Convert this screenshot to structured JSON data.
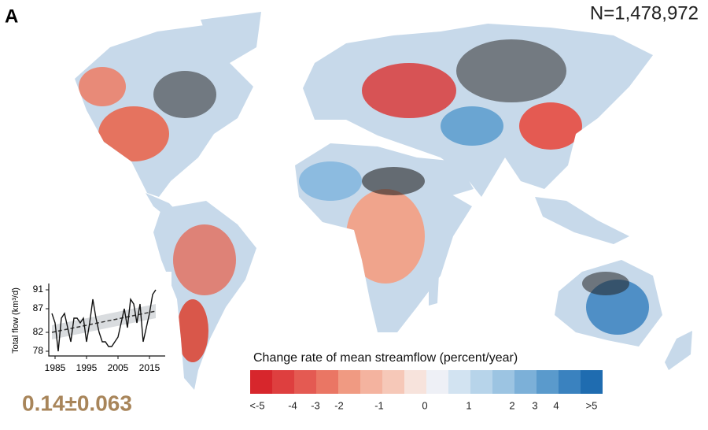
{
  "panel_label": "A",
  "sample_count": "N=1,478,972",
  "inset_chart": {
    "type": "line",
    "y_label": "Total flow (km³/d)",
    "x": [
      1984,
      1985,
      1986,
      1987,
      1988,
      1989,
      1990,
      1991,
      1992,
      1993,
      1994,
      1995,
      1996,
      1997,
      1998,
      1999,
      2000,
      2001,
      2002,
      2003,
      2004,
      2005,
      2006,
      2007,
      2008,
      2009,
      2010,
      2011,
      2012,
      2013,
      2014,
      2015,
      2016,
      2017
    ],
    "values": [
      86,
      84,
      78,
      85,
      86,
      83,
      80,
      85,
      85,
      84,
      85,
      80,
      84,
      89,
      85,
      82,
      80,
      80,
      79,
      79,
      80,
      81,
      84,
      87,
      83,
      89,
      88,
      84,
      88,
      80,
      83,
      86,
      90,
      91
    ],
    "color": "#111111",
    "trend": {
      "x": [
        1984,
        2017
      ],
      "values": [
        82,
        86.5
      ],
      "lower": [
        80.5,
        85
      ],
      "upper": [
        83.5,
        88
      ],
      "color": "#333333",
      "band_color": "#d9dcdf"
    },
    "xlim": [
      1983,
      2020
    ],
    "ylim": [
      77,
      92
    ],
    "xticks": [
      1985,
      1995,
      2005,
      2015
    ],
    "yticks": [
      78,
      82,
      87,
      91
    ]
  },
  "trend_estimate": "0.14±0.063",
  "colorbar": {
    "title": "Change rate of mean streamflow (percent/year)",
    "colors": [
      "#d7262c",
      "#de3f3f",
      "#e45a52",
      "#ea7664",
      "#f09a82",
      "#f4b39f",
      "#f6c8b8",
      "#f7e3dc",
      "#eef0f6",
      "#d2e3f1",
      "#b7d4ea",
      "#9cc4e2",
      "#7cb0d8",
      "#5a9acc",
      "#3a82bf",
      "#1f6cb0"
    ],
    "ticks": [
      {
        "value": -5,
        "label": "<-5"
      },
      -4,
      -3,
      -2,
      -1,
      0,
      1,
      2,
      3,
      4,
      {
        "value": 5,
        "label": ">5"
      }
    ]
  }
}
